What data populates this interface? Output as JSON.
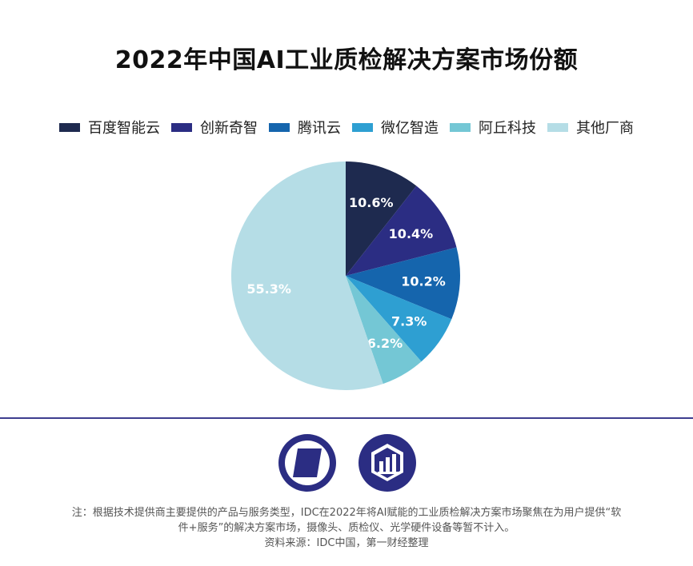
{
  "chart_data": {
    "type": "pie",
    "title": "2022年中国AI工业质检解决方案市场份额",
    "legend_position": "top",
    "slices": [
      {
        "name": "百度智能云",
        "value": 10.6,
        "label": "10.6%",
        "color": "#1e2a4f"
      },
      {
        "name": "创新奇智",
        "value": 10.4,
        "label": "10.4%",
        "color": "#2b2d83"
      },
      {
        "name": "腾讯云",
        "value": 10.2,
        "label": "10.2%",
        "color": "#1565ad"
      },
      {
        "name": "微亿智造",
        "value": 7.3,
        "label": "7.3%",
        "color": "#2e9fd2"
      },
      {
        "name": "阿丘科技",
        "value": 6.2,
        "label": "6.2%",
        "color": "#74c7d5"
      },
      {
        "name": "其他厂商",
        "value": 55.3,
        "label": "55.3%",
        "color": "#b5dde6"
      }
    ]
  },
  "logos": {
    "left": {
      "icon": "publisher-logo-icon",
      "color": "#2b2d83"
    },
    "right": {
      "icon": "chart-logo-icon",
      "color": "#2b2d83"
    }
  },
  "notes": {
    "line1": "注：根据技术提供商主要提供的产品与服务类型，IDC在2022年将AI赋能的工业质检解决方案市场聚焦在为用户提供“软",
    "line2": "件+服务”的解决方案市场，摄像头、质检仪、光学硬件设备等暂不计入。",
    "source": "资料来源：IDC中国，第一财经整理"
  }
}
